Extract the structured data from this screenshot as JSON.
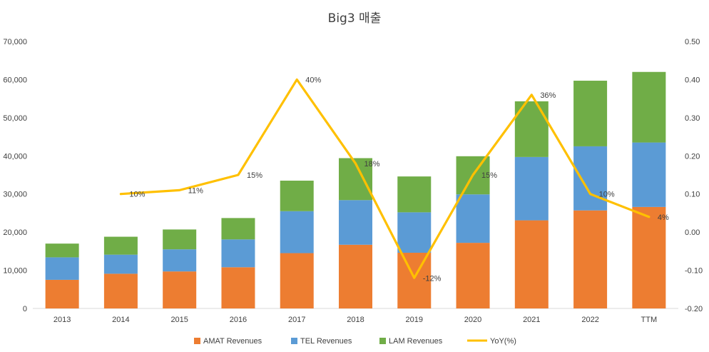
{
  "chart_data": {
    "type": "bar",
    "stacked": true,
    "title": "Big3 매출",
    "categories": [
      "2013",
      "2014",
      "2015",
      "2016",
      "2017",
      "2018",
      "2019",
      "2020",
      "2021",
      "2022",
      "TTM"
    ],
    "series": [
      {
        "name": "AMAT Revenues",
        "color": "#ED7D31",
        "values": [
          7500,
          9100,
          9700,
          10800,
          14500,
          16700,
          14600,
          17200,
          23100,
          25700,
          26600
        ]
      },
      {
        "name": "TEL Revenues",
        "color": "#5B9BD5",
        "values": [
          5900,
          5000,
          5800,
          7300,
          11000,
          11700,
          10600,
          12700,
          16600,
          16800,
          16900
        ]
      },
      {
        "name": "LAM Revenues",
        "color": "#70AD47",
        "values": [
          3600,
          4700,
          5200,
          5600,
          8000,
          11000,
          9400,
          10000,
          14600,
          17200,
          18500
        ]
      }
    ],
    "line_series": {
      "name": "YoY(%)",
      "color": "#FFC000",
      "axis": "right",
      "values": [
        null,
        0.1,
        0.11,
        0.15,
        0.4,
        0.18,
        -0.12,
        0.15,
        0.36,
        0.1,
        0.04
      ],
      "labels": [
        "",
        "10%",
        "11%",
        "15%",
        "40%",
        "18%",
        "-12%",
        "15%",
        "36%",
        "10%",
        "4%"
      ]
    },
    "y_left": {
      "min": 0,
      "max": 70000,
      "step": 10000,
      "tick_labels": [
        "0",
        "10,000",
        "20,000",
        "30,000",
        "40,000",
        "50,000",
        "60,000",
        "70,000"
      ]
    },
    "y_right": {
      "min": -0.2,
      "max": 0.5,
      "step": 0.1,
      "tick_labels": [
        "-0.20",
        "-0.10",
        "0.00",
        "0.10",
        "0.20",
        "0.30",
        "0.40",
        "0.50"
      ]
    },
    "grid": false,
    "legend_position": "bottom"
  }
}
